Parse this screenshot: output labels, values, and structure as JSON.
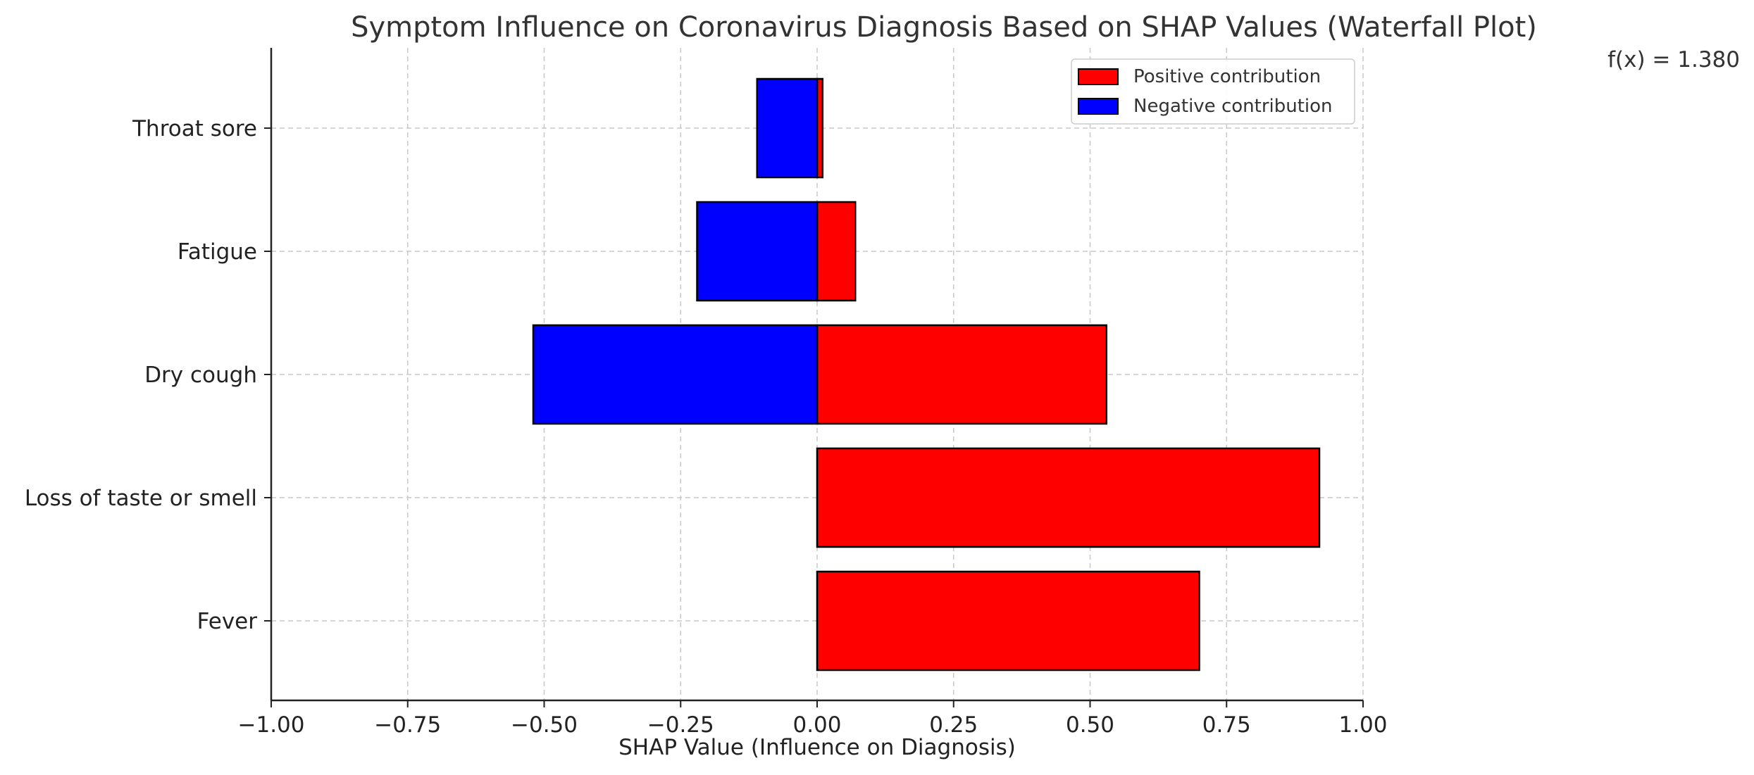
{
  "chart_data": {
    "type": "bar",
    "orientation": "horizontal",
    "title": "Symptom Influence on Coronavirus Diagnosis Based on SHAP Values (Waterfall Plot)",
    "xlabel": "SHAP Value (Influence on Diagnosis)",
    "ylabel": "",
    "xlim": [
      -1.0,
      1.0
    ],
    "xticks": [
      -1.0,
      -0.75,
      -0.5,
      -0.25,
      0.0,
      0.25,
      0.5,
      0.75,
      1.0
    ],
    "xtick_labels": [
      "−1.00",
      "−0.75",
      "−0.50",
      "−0.25",
      "0.00",
      "0.25",
      "0.50",
      "0.75",
      "1.00"
    ],
    "categories": [
      "Fever",
      "Loss of taste or smell",
      "Dry cough",
      "Fatigue",
      "Throat sore"
    ],
    "series": [
      {
        "name": "Positive contribution",
        "color": "#ff0000",
        "values": [
          0.7,
          0.92,
          0.53,
          0.07,
          0.01
        ]
      },
      {
        "name": "Negative contribution",
        "color": "#0000ff",
        "values": [
          0.0,
          0.0,
          -0.52,
          -0.22,
          -0.11
        ]
      }
    ],
    "grid": true,
    "legend_position": "top-right",
    "annotation": "f(x) = 1.380"
  }
}
